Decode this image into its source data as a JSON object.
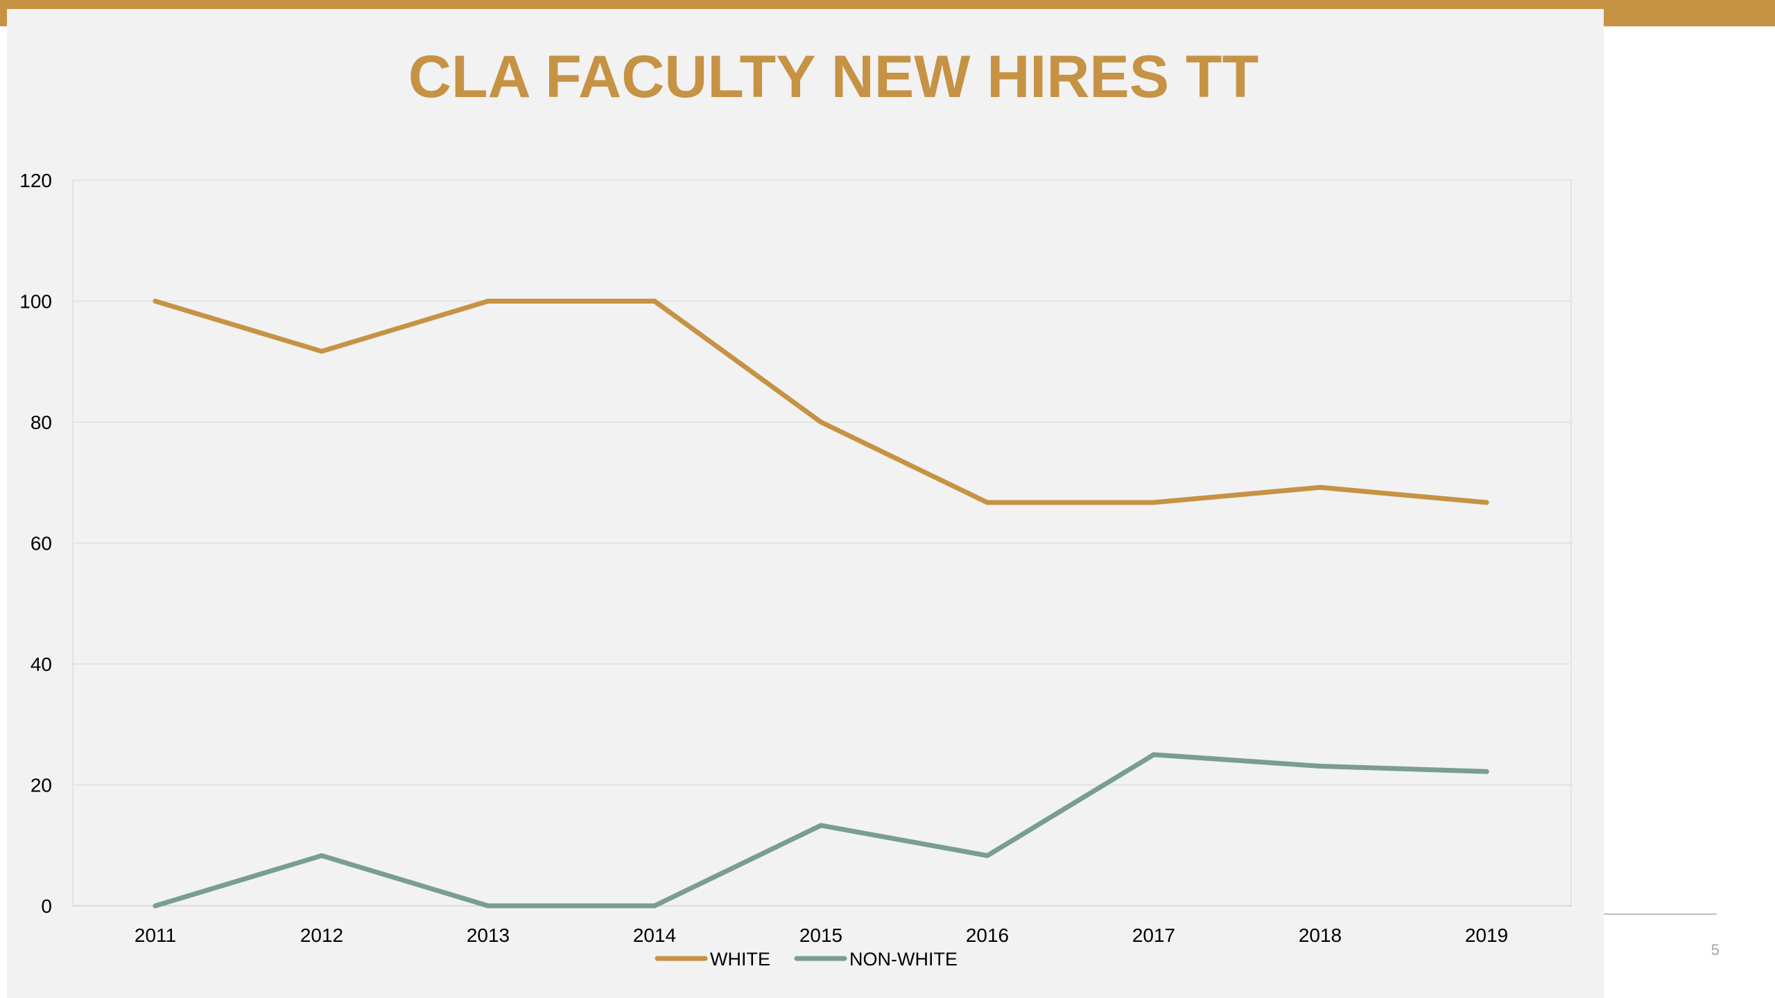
{
  "page_number": "5",
  "colors": {
    "accent": "#C69244",
    "panel": "#F2F2F2",
    "white_series": "#C69244",
    "nonwhite_series": "#7A9E8E",
    "gridline": "#E3E3E3"
  },
  "chart_data": {
    "type": "line",
    "title": "CLA FACULTY NEW HIRES TT",
    "xlabel": "",
    "ylabel": "",
    "categories": [
      "2011",
      "2012",
      "2013",
      "2014",
      "2015",
      "2016",
      "2017",
      "2018",
      "2019"
    ],
    "ylim": [
      0,
      120
    ],
    "yticks": [
      0,
      20,
      40,
      60,
      80,
      100,
      120
    ],
    "grid": true,
    "legend_position": "bottom",
    "series": [
      {
        "name": "WHITE",
        "color": "#C69244",
        "values": [
          100,
          91.7,
          100,
          100,
          80,
          66.7,
          66.7,
          69.2,
          66.7
        ]
      },
      {
        "name": "NON-WHITE",
        "color": "#7A9E8E",
        "values": [
          0,
          8.3,
          0,
          0,
          13.3,
          8.3,
          25,
          23.1,
          22.2
        ]
      }
    ]
  }
}
